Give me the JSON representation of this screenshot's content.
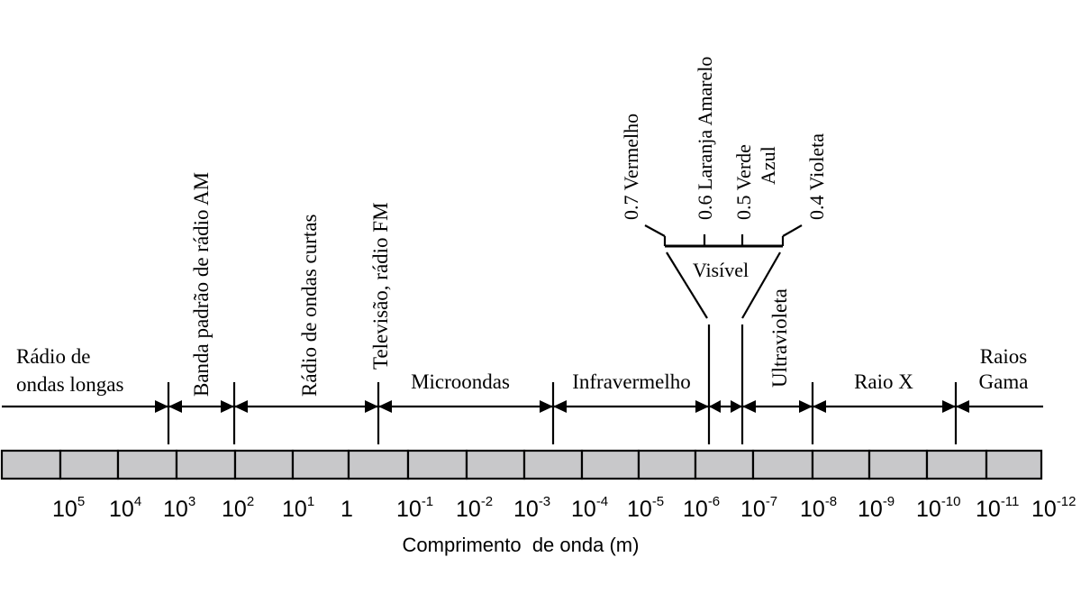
{
  "axis_title": "Comprimento  de onda (m)",
  "bands": {
    "radio_longas_1": "Rádio de",
    "radio_longas_2": "ondas longas",
    "am": "Banda padrão de rádio AM",
    "curtas": "Rádio de ondas curtas",
    "tv_fm": "Televisão, rádio FM",
    "micro": "Microondas",
    "infra": "Infravermelho",
    "visivel": "Visível",
    "ultra": "Ultravioleta",
    "raio_x": "Raio X",
    "gama_1": "Raios",
    "gama_2": "Gama"
  },
  "visible_colors": {
    "vermelho": "0.7 Vermelho",
    "laranja": "0.6 Laranja Amarelo",
    "verde": "0.5 Verde",
    "azul": "Azul",
    "violeta": "0.4 Violeta"
  },
  "ticks": [
    {
      "base": "10",
      "exp": "5"
    },
    {
      "base": "10",
      "exp": "4"
    },
    {
      "base": "10",
      "exp": "3"
    },
    {
      "base": "10",
      "exp": "2"
    },
    {
      "base": "10",
      "exp": "1"
    },
    {
      "base": "1",
      "exp": ""
    },
    {
      "base": "10",
      "exp": "-1"
    },
    {
      "base": "10",
      "exp": "-2"
    },
    {
      "base": "10",
      "exp": "-3"
    },
    {
      "base": "10",
      "exp": "-4"
    },
    {
      "base": "10",
      "exp": "-5"
    },
    {
      "base": "10",
      "exp": "-6"
    },
    {
      "base": "10",
      "exp": "-7"
    },
    {
      "base": "10",
      "exp": "-8"
    },
    {
      "base": "10",
      "exp": "-9"
    },
    {
      "base": "10",
      "exp": "-10"
    },
    {
      "base": "10",
      "exp": "-11"
    },
    {
      "base": "10",
      "exp": "-12"
    }
  ],
  "colors": {
    "scale_fill": "#c8c8ca",
    "ink": "#000000"
  }
}
